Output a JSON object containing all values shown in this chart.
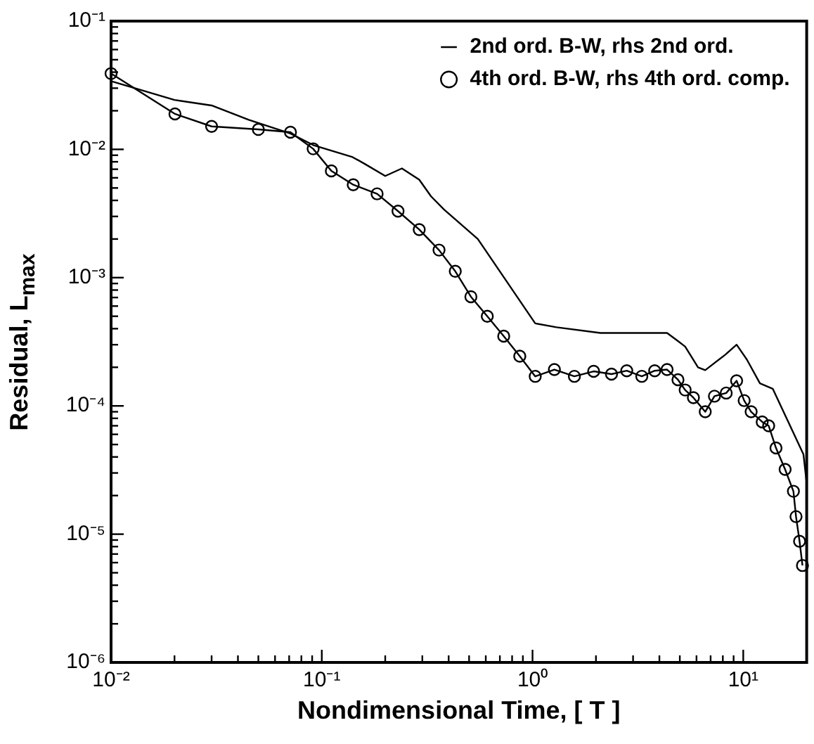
{
  "chart_data": {
    "type": "line",
    "xlabel": "Nondimensional Time, [ T ]",
    "ylabel": "Residual, L$_{max}$",
    "log": "xy",
    "grid": false,
    "legend": "top right",
    "xlim": [
      0.01,
      20
    ],
    "xticks": [
      {
        "value": 0.01,
        "label": "10⁻²"
      },
      {
        "value": 0.02,
        "label": null
      },
      {
        "value": 0.03,
        "label": null
      },
      {
        "value": 0.04,
        "label": null
      },
      {
        "value": 0.05,
        "label": null
      },
      {
        "value": 0.06,
        "label": null
      },
      {
        "value": 0.07,
        "label": null
      },
      {
        "value": 0.08,
        "label": null
      },
      {
        "value": 0.09,
        "label": null
      },
      {
        "value": 0.1,
        "label": "10⁻¹"
      },
      {
        "value": 0.2,
        "label": null
      },
      {
        "value": 0.3,
        "label": null
      },
      {
        "value": 0.4,
        "label": null
      },
      {
        "value": 0.5,
        "label": null
      },
      {
        "value": 0.6,
        "label": null
      },
      {
        "value": 0.7,
        "label": null
      },
      {
        "value": 0.8,
        "label": null
      },
      {
        "value": 0.9,
        "label": null
      },
      {
        "value": 1,
        "label": "10⁰"
      },
      {
        "value": 2,
        "label": null
      },
      {
        "value": 3,
        "label": null
      },
      {
        "value": 4,
        "label": null
      },
      {
        "value": 5,
        "label": null
      },
      {
        "value": 6,
        "label": null
      },
      {
        "value": 7,
        "label": null
      },
      {
        "value": 8,
        "label": null
      },
      {
        "value": 9,
        "label": null
      },
      {
        "value": 10,
        "label": "10¹"
      }
    ],
    "ylim": [
      1e-06,
      0.1
    ],
    "yticks": [
      {
        "value": 1e-06,
        "label": "10⁻⁶"
      },
      {
        "value": 2e-06,
        "label": null
      },
      {
        "value": 3e-06,
        "label": null
      },
      {
        "value": 4e-06,
        "label": null
      },
      {
        "value": 5e-06,
        "label": null
      },
      {
        "value": 6e-06,
        "label": null
      },
      {
        "value": 7e-06,
        "label": null
      },
      {
        "value": 8e-06,
        "label": null
      },
      {
        "value": 9e-06,
        "label": null
      },
      {
        "value": 1e-05,
        "label": "10⁻⁵"
      },
      {
        "value": 2e-05,
        "label": null
      },
      {
        "value": 3e-05,
        "label": null
      },
      {
        "value": 4e-05,
        "label": null
      },
      {
        "value": 5e-05,
        "label": null
      },
      {
        "value": 6e-05,
        "label": null
      },
      {
        "value": 7e-05,
        "label": null
      },
      {
        "value": 8e-05,
        "label": null
      },
      {
        "value": 9e-05,
        "label": null
      },
      {
        "value": 0.0001,
        "label": "10⁻⁴"
      },
      {
        "value": 0.0002,
        "label": null
      },
      {
        "value": 0.0003,
        "label": null
      },
      {
        "value": 0.0004,
        "label": null
      },
      {
        "value": 0.0005,
        "label": null
      },
      {
        "value": 0.0006,
        "label": null
      },
      {
        "value": 0.0007,
        "label": null
      },
      {
        "value": 0.0008,
        "label": null
      },
      {
        "value": 0.0009,
        "label": null
      },
      {
        "value": 0.001,
        "label": "10⁻³"
      },
      {
        "value": 0.002,
        "label": null
      },
      {
        "value": 0.003,
        "label": null
      },
      {
        "value": 0.004,
        "label": null
      },
      {
        "value": 0.005,
        "label": null
      },
      {
        "value": 0.006,
        "label": null
      },
      {
        "value": 0.007,
        "label": null
      },
      {
        "value": 0.008,
        "label": null
      },
      {
        "value": 0.009,
        "label": null
      },
      {
        "value": 0.01,
        "label": "10⁻²"
      },
      {
        "value": 0.02,
        "label": null
      },
      {
        "value": 0.03,
        "label": null
      },
      {
        "value": 0.04,
        "label": null
      },
      {
        "value": 0.05,
        "label": null
      },
      {
        "value": 0.06,
        "label": null
      },
      {
        "value": 0.07,
        "label": null
      },
      {
        "value": 0.08,
        "label": null
      },
      {
        "value": 0.09,
        "label": null
      },
      {
        "value": 0.1,
        "label": "10⁻¹"
      }
    ],
    "series": [
      {
        "name": "2nd ord. B-W, rhs 2nd ord.",
        "color": "#000000",
        "marker": "none",
        "x": [
          0.01,
          0.02,
          0.03,
          0.045,
          0.071,
          0.091,
          0.14,
          0.16,
          0.2,
          0.24,
          0.29,
          0.33,
          0.38,
          0.55,
          1.03,
          1.3,
          2.1,
          4.35,
          4.9,
          5.3,
          6.1,
          6.6,
          8.2,
          9.3,
          10.4,
          12,
          13.8,
          16.3,
          19.3,
          20
        ],
        "values": [
          0.034,
          0.0243,
          0.022,
          0.017,
          0.0133,
          0.0108,
          0.0087,
          0.0077,
          0.0062,
          0.0071,
          0.0058,
          0.0043,
          0.0034,
          0.002,
          0.00044,
          0.00041,
          0.00037,
          0.00037,
          0.00032,
          0.00029,
          0.0002,
          0.00019,
          0.00025,
          0.0003,
          0.00023,
          0.00015,
          0.000136,
          7.6e-05,
          4.2e-05,
          2.5e-05
        ]
      },
      {
        "name": "4th ord. B-W, rhs 4th ord. comp.",
        "color": "#000000",
        "marker": "circle",
        "x": [
          0.01,
          0.0201,
          0.03,
          0.05,
          0.071,
          0.091,
          0.111,
          0.141,
          0.183,
          0.23,
          0.29,
          0.36,
          0.43,
          0.51,
          0.61,
          0.73,
          0.87,
          1.03,
          1.27,
          1.58,
          1.95,
          2.37,
          2.8,
          3.3,
          3.8,
          4.35,
          4.9,
          5.3,
          5.8,
          6.6,
          7.3,
          8.3,
          9.3,
          10.1,
          10.9,
          12.3,
          13.2,
          14.3,
          15.8,
          17.3,
          17.8,
          18.5,
          19.1
        ],
        "values": [
          0.039,
          0.0189,
          0.0151,
          0.0143,
          0.0136,
          0.0101,
          0.0068,
          0.0053,
          0.0045,
          0.0033,
          0.00237,
          0.00164,
          0.00112,
          0.00071,
          0.0005,
          0.00035,
          0.000244,
          0.00017,
          0.000192,
          0.00017,
          0.000186,
          0.000177,
          0.000188,
          0.00017,
          0.000188,
          0.000192,
          0.00016,
          0.000133,
          0.000116,
          9e-05,
          0.000119,
          0.000126,
          0.000157,
          0.00011,
          9e-05,
          7.5e-05,
          7e-05,
          4.7e-05,
          3.2e-05,
          2.16e-05,
          1.37e-05,
          8.8e-06,
          5.7e-06
        ]
      }
    ]
  }
}
